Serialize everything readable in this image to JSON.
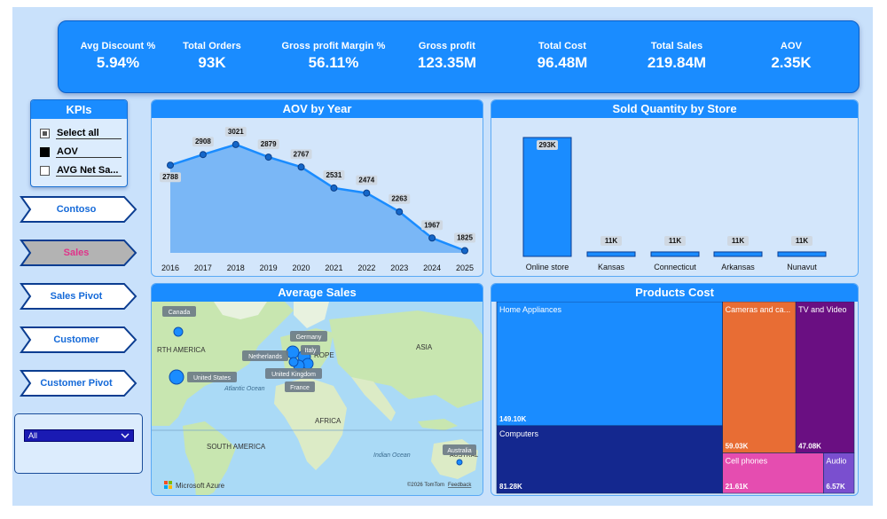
{
  "kpis": [
    {
      "label": "Avg Discount %",
      "value": "5.94%"
    },
    {
      "label": "Total Orders",
      "value": "93K"
    },
    {
      "label": "Gross profit Margin %",
      "value": "56.11%"
    },
    {
      "label": "Gross profit",
      "value": "123.35M"
    },
    {
      "label": "Total Cost",
      "value": "96.48M"
    },
    {
      "label": "Total Sales",
      "value": "219.84M"
    },
    {
      "label": "AOV",
      "value": "2.35K"
    }
  ],
  "slicer": {
    "title": "KPIs",
    "options": [
      {
        "label": "Select all",
        "state": "partial"
      },
      {
        "label": "AOV",
        "state": "checked"
      },
      {
        "label": "AVG Net Sa...",
        "state": "unchecked"
      }
    ]
  },
  "nav": {
    "items": [
      {
        "label": "Contoso",
        "active": false
      },
      {
        "label": "Sales",
        "active": true
      },
      {
        "label": "Sales Pivot",
        "active": false
      },
      {
        "label": "Customer",
        "active": false
      },
      {
        "label": "Customer Pivot",
        "active": false
      }
    ]
  },
  "filter_dropdown": {
    "selected": "All"
  },
  "colors": {
    "accent": "#1a8cff",
    "panel_bg": "#d3e6fb",
    "active_nav": "#b3b3b3",
    "active_nav_text": "#e0338a"
  },
  "chart_data": [
    {
      "type": "area",
      "title": "AOV by Year",
      "x": [
        "2016",
        "2017",
        "2018",
        "2019",
        "2020",
        "2021",
        "2022",
        "2023",
        "2024",
        "2025"
      ],
      "values": [
        2788,
        2908,
        3021,
        2879,
        2767,
        2531,
        2474,
        2263,
        1967,
        1825
      ],
      "labels": [
        "2788",
        "2908",
        "3021",
        "2879",
        "2767",
        "2531",
        "2474",
        "2263",
        "1967",
        "1825"
      ],
      "ylim": [
        1800,
        3100
      ],
      "grid": false
    },
    {
      "type": "bar",
      "title": "Sold Quantity by Store",
      "categories": [
        "Online store",
        "Kansas",
        "Connecticut",
        "Arkansas",
        "Nunavut"
      ],
      "values": [
        293000,
        11000,
        11000,
        11000,
        11000
      ],
      "labels": [
        "293K",
        "11K",
        "11K",
        "11K",
        "11K"
      ]
    },
    {
      "type": "treemap",
      "title": "Products Cost",
      "items": [
        {
          "name": "Home Appliances",
          "value": 149100,
          "label": "149.10K",
          "color": "#1a8cff"
        },
        {
          "name": "Computers",
          "value": 81280,
          "label": "81.28K",
          "color": "#14288f"
        },
        {
          "name": "Cameras and ca...",
          "value": 59030,
          "label": "59.03K",
          "color": "#e86d34"
        },
        {
          "name": "TV and Video",
          "value": 47080,
          "label": "47.08K",
          "color": "#6a0f82"
        },
        {
          "name": "Cell phones",
          "value": 21610,
          "label": "21.61K",
          "color": "#e54db0"
        },
        {
          "name": "Audio",
          "value": 6570,
          "label": "6.57K",
          "color": "#7a4fcf"
        }
      ]
    }
  ],
  "map": {
    "title": "Average Sales",
    "points": [
      {
        "label": "Canada"
      },
      {
        "label": "United States"
      },
      {
        "label": "Netherlands"
      },
      {
        "label": "Germany"
      },
      {
        "label": "Italy"
      },
      {
        "label": "United Kingdom"
      },
      {
        "label": "France"
      },
      {
        "label": "Australia"
      }
    ],
    "region_labels": [
      "RTH AMERICA",
      "Atlantic Ocean",
      "ROPE",
      "ASIA",
      "AFRICA",
      "SOUTH AMERICA",
      "Indian Ocean",
      "AUSTRAL"
    ],
    "logo": "Microsoft Azure",
    "attribution": "©2026 TomTom",
    "feedback": "Feedback"
  }
}
